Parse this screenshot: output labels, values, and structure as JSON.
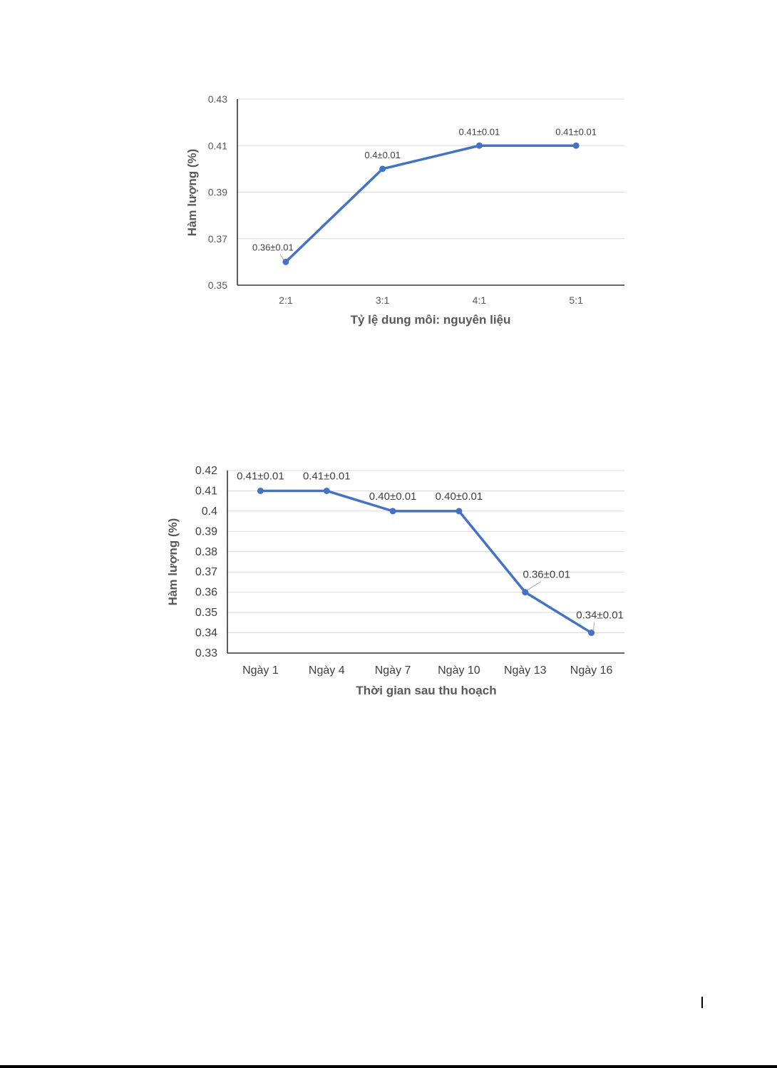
{
  "chart_data": [
    {
      "type": "line",
      "categories": [
        "2:1",
        "3:1",
        "4:1",
        "5:1"
      ],
      "values": [
        0.36,
        0.4,
        0.41,
        0.41
      ],
      "data_labels": [
        "0.36±0.01",
        "0.4±0.01",
        "0.41±0.01",
        "0.41±0.01"
      ],
      "xlabel": "Tỷ lệ dung môi: nguyên liệu",
      "ylabel": "Hàm lượng (%)",
      "ylim": [
        0.35,
        0.43
      ],
      "yticks": [
        "0.35",
        "0.37",
        "0.39",
        "0.41",
        "0.43"
      ],
      "grid": true,
      "color": "#4472c4"
    },
    {
      "type": "line",
      "categories": [
        "Ngày 1",
        "Ngày 4",
        "Ngày 7",
        "Ngày 10",
        "Ngày 13",
        "Ngày 16"
      ],
      "values": [
        0.41,
        0.41,
        0.4,
        0.4,
        0.36,
        0.34
      ],
      "data_labels": [
        "0.41±0.01",
        "0.41±0.01",
        "0.40±0.01",
        "0.40±0.01",
        "0.36±0.01",
        "0.34±0.01"
      ],
      "xlabel": "Thời gian sau thu hoạch",
      "ylabel": "Hàm lượng (%)",
      "ylim": [
        0.33,
        0.42
      ],
      "yticks": [
        "0.33",
        "0.34",
        "0.35",
        "0.36",
        "0.37",
        "0.38",
        "0.39",
        "0.4",
        "0.41",
        "0.42"
      ],
      "grid": true,
      "color": "#4472c4"
    }
  ]
}
